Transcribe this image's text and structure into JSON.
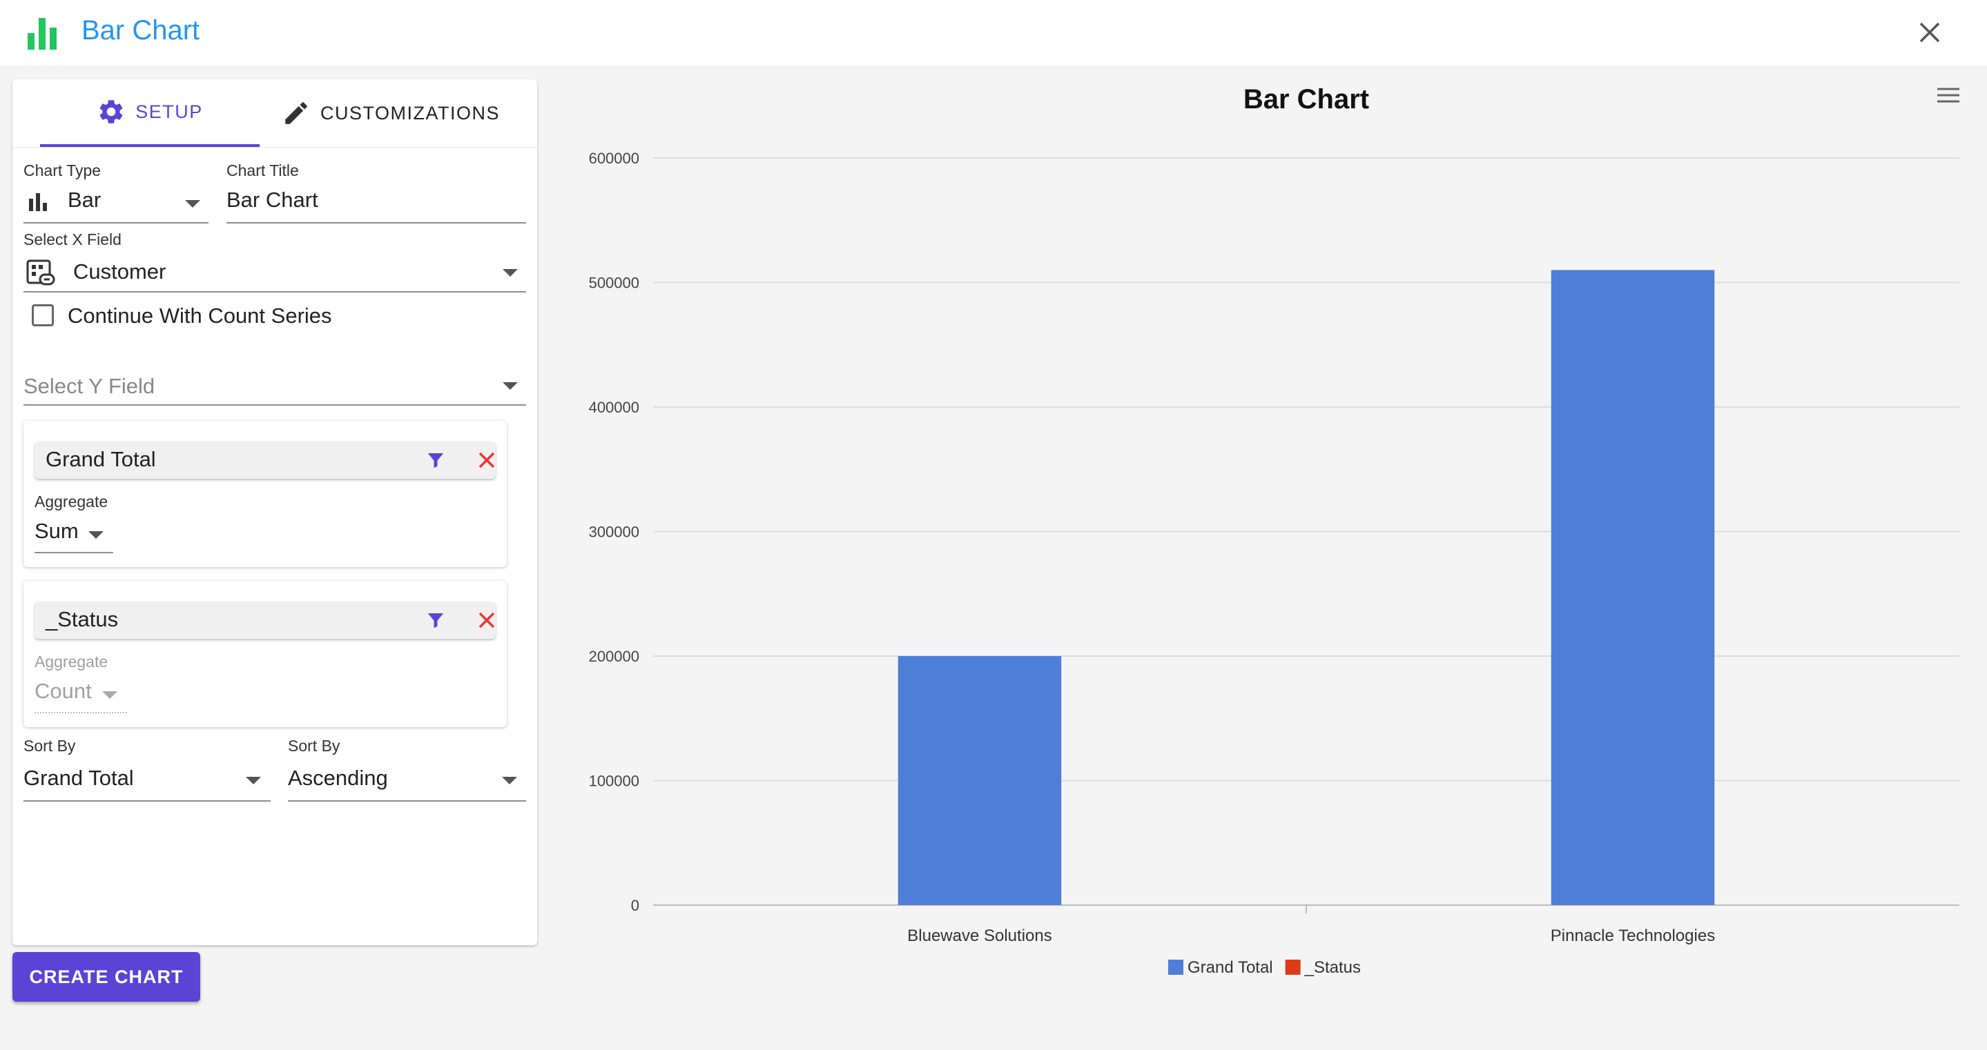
{
  "app": {
    "title": "Bar Chart"
  },
  "tabs": [
    {
      "label": "SETUP",
      "active": true,
      "icon": "gear-icon"
    },
    {
      "label": "CUSTOMIZATIONS",
      "active": false,
      "icon": "pencil-icon"
    }
  ],
  "setup": {
    "chart_type_label": "Chart Type",
    "chart_type_value": "Bar",
    "chart_title_label": "Chart Title",
    "chart_title_value": "Bar Chart",
    "x_field_label": "Select X Field",
    "x_field_value": "Customer",
    "count_series_label": "Continue With Count Series",
    "count_series_checked": false,
    "y_field_placeholder": "Select Y Field",
    "series": [
      {
        "field": "Grand Total",
        "aggregate_label": "Aggregate",
        "aggregate_value": "Sum",
        "disabled": false
      },
      {
        "field": "_Status",
        "aggregate_label": "Aggregate",
        "aggregate_value": "Count",
        "disabled": true
      }
    ],
    "sort_by_label": "Sort By",
    "sort_by_value": "Grand Total",
    "sort_order_label": "Sort By",
    "sort_order_value": "Ascending"
  },
  "actions": {
    "create_chart": "CREATE CHART"
  },
  "colors": {
    "accent": "#5b43d6",
    "title_blue": "#2196f3",
    "logo_green": "#22c55e",
    "series_grand_total": "#4f7ed6",
    "series_status": "#dd3b17",
    "delete_red": "#e53935"
  },
  "chart_data": {
    "type": "bar",
    "title": "Bar Chart",
    "categories": [
      "Bluewave Solutions",
      "Pinnacle Technologies"
    ],
    "series": [
      {
        "name": "Grand Total",
        "values": [
          200000,
          510000
        ],
        "color": "#4f7ed6"
      },
      {
        "name": "_Status",
        "values": [
          null,
          null
        ],
        "color": "#dd3b17"
      }
    ],
    "y_ticks": [
      "0",
      "100000",
      "200000",
      "300000",
      "400000",
      "500000",
      "600000"
    ],
    "ylim": [
      0,
      600000
    ],
    "grid": true,
    "legend_position": "bottom"
  }
}
